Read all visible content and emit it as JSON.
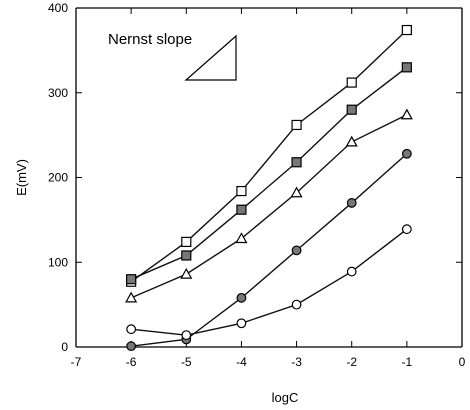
{
  "chart_data": {
    "type": "line",
    "title": "",
    "xlabel": "logC",
    "ylabel": "E(mV)",
    "xlim": [
      -7,
      0
    ],
    "ylim": [
      0,
      400
    ],
    "xticks": [
      -7,
      -6,
      -5,
      -4,
      -3,
      -2,
      -1,
      0
    ],
    "yticks": [
      0,
      100,
      200,
      300,
      400
    ],
    "grid": false,
    "annotation": "Nernst slope",
    "x": [
      -6,
      -5,
      -4,
      -3,
      -2,
      -1
    ],
    "series": [
      {
        "marker": "open-square",
        "values": [
          77,
          124,
          184,
          262,
          312,
          374
        ]
      },
      {
        "marker": "filled-square",
        "values": [
          80,
          108,
          162,
          218,
          280,
          330
        ]
      },
      {
        "marker": "open-triangle",
        "values": [
          58,
          86,
          128,
          182,
          242,
          274
        ]
      },
      {
        "marker": "filled-circle",
        "values": [
          1,
          9,
          58,
          114,
          170,
          228
        ]
      },
      {
        "marker": "open-circle",
        "values": [
          21,
          14,
          28,
          50,
          89,
          139
        ]
      }
    ],
    "marker_colors": {
      "open": "#ffffff",
      "filled": "#777777",
      "stroke": "#000000"
    }
  }
}
